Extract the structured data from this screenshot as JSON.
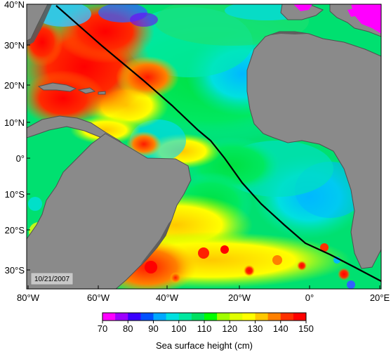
{
  "map": {
    "date_label": "10/21/2007",
    "lat_ticks": [
      "40°N",
      "30°N",
      "20°N",
      "10°N",
      "0°",
      "10°S",
      "20°S",
      "30°S"
    ],
    "lon_ticks": [
      "80°W",
      "60°W",
      "40°W",
      "20°W",
      "0°",
      "20°E"
    ],
    "land_color": "#8a8a8a",
    "coast_color": "#4a4a4a",
    "track_color": "#000000"
  },
  "colorbar": {
    "ticks": [
      "70",
      "80",
      "90",
      "100",
      "110",
      "120",
      "130",
      "140",
      "150"
    ],
    "label": "Sea surface height (cm)",
    "colors": [
      "#ff00ff",
      "#9d00ff",
      "#3a00ff",
      "#0050ff",
      "#00a8ff",
      "#00e0e0",
      "#00e8a0",
      "#00e060",
      "#00ff00",
      "#a0ff00",
      "#e0ff00",
      "#ffff00",
      "#ffc800",
      "#ff8000",
      "#ff3000",
      "#ff0000"
    ]
  }
}
